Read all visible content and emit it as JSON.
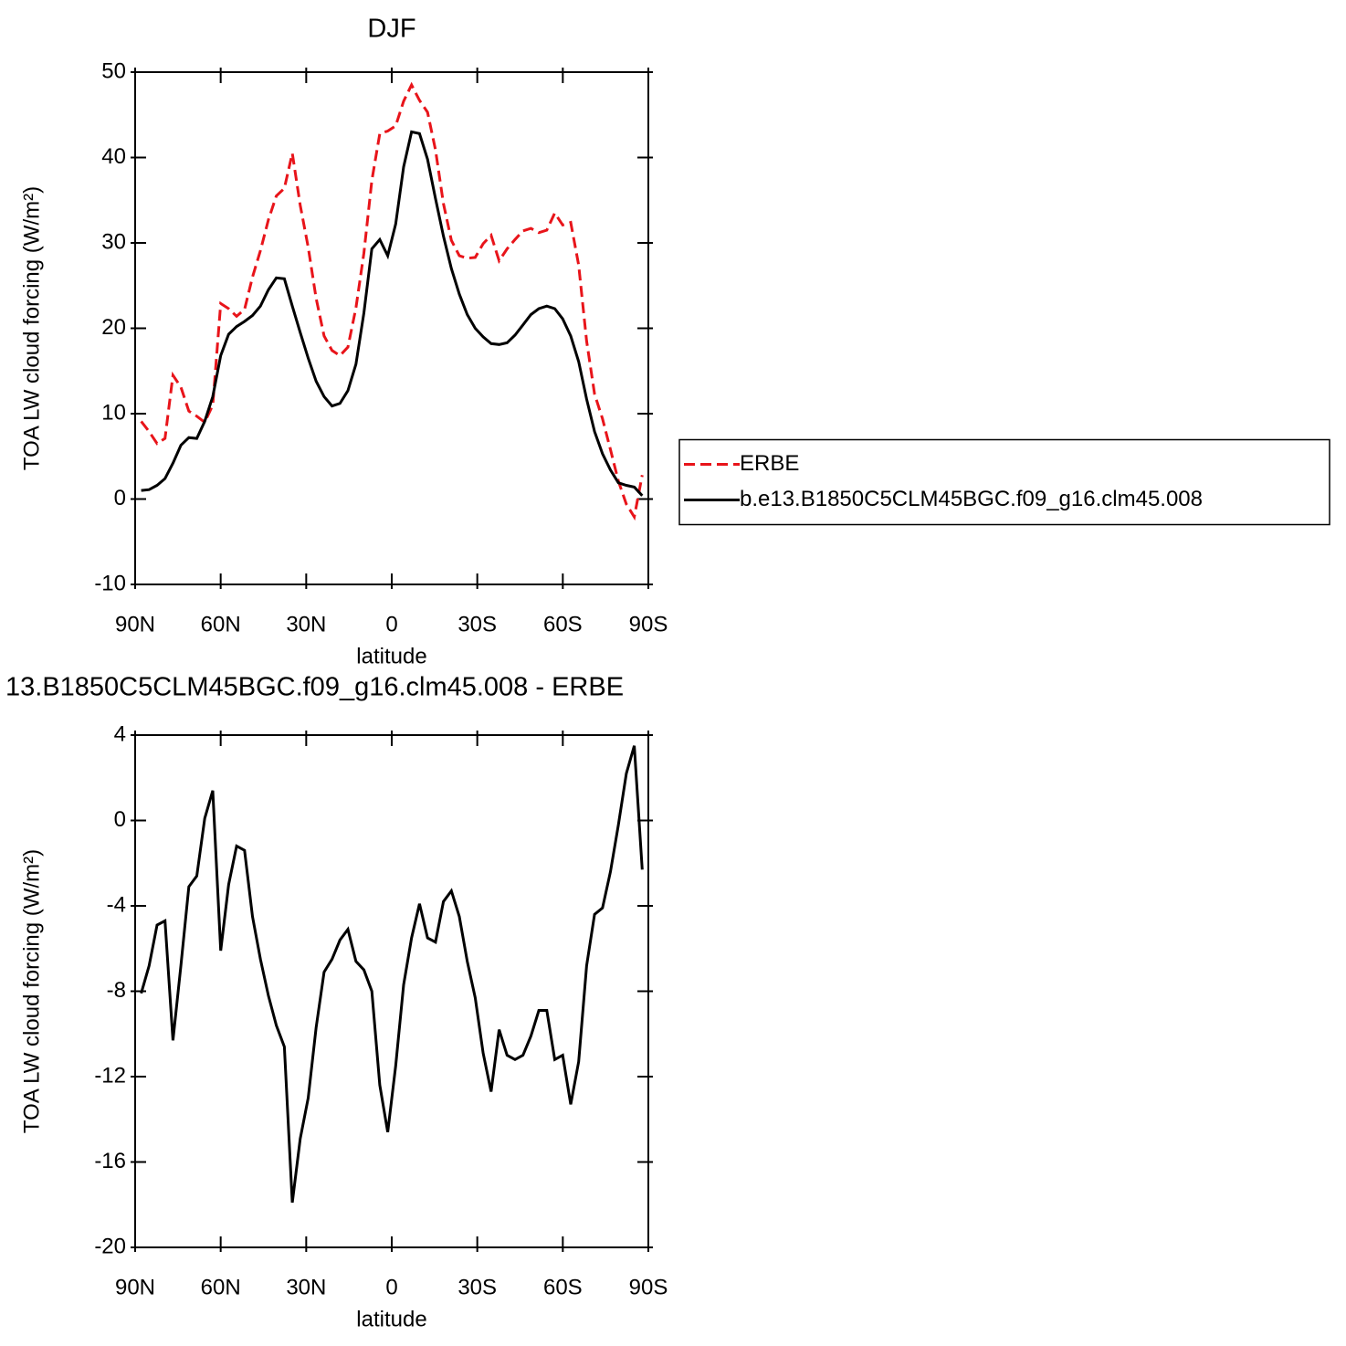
{
  "chart_data": [
    {
      "type": "line",
      "title": "DJF",
      "x_label": "latitude",
      "y_label": "TOA LW cloud forcing (W/m²)",
      "x": [
        87.9,
        85.11,
        82.32,
        79.53,
        76.74,
        73.95,
        71.16,
        68.37,
        65.58,
        62.79,
        60.0,
        57.21,
        54.42,
        51.63,
        48.84,
        46.05,
        43.26,
        40.47,
        37.68,
        34.89,
        32.1,
        29.31,
        26.52,
        23.73,
        20.94,
        18.15,
        15.36,
        12.57,
        9.78,
        6.99,
        4.2,
        1.41,
        -1.38,
        -4.17,
        -6.96,
        -9.75,
        -12.54,
        -15.33,
        -18.12,
        -20.91,
        -23.7,
        -26.49,
        -29.28,
        -32.07,
        -34.86,
        -37.65,
        -40.44,
        -43.23,
        -46.02,
        -48.81,
        -51.6,
        -54.39,
        -57.18,
        -59.97,
        -62.76,
        -65.55,
        -68.34,
        -71.13,
        -73.92,
        -76.71,
        -79.5,
        -82.29,
        -85.08,
        -87.87
      ],
      "series": [
        {
          "name": "ERBE",
          "color": "#e8141a",
          "dash": true,
          "values": [
            9.1,
            7.9,
            6.5,
            7.1,
            14.5,
            13.1,
            10.3,
            9.7,
            9.0,
            11.0,
            22.9,
            22.3,
            21.4,
            22.2,
            26.0,
            29.1,
            32.7,
            35.5,
            36.4,
            40.5,
            34.4,
            29.5,
            23.5,
            19.1,
            17.4,
            16.8,
            17.8,
            22.4,
            28.8,
            37.3,
            42.8,
            43.1,
            43.7,
            46.6,
            48.5,
            46.7,
            45.3,
            40.9,
            34.6,
            30.3,
            28.5,
            28.2,
            28.3,
            29.9,
            30.9,
            27.9,
            29.3,
            30.4,
            31.4,
            31.7,
            31.2,
            31.5,
            33.5,
            32.1,
            32.4,
            27.4,
            18.5,
            12.3,
            9.4,
            5.8,
            2.1,
            -0.6,
            -2.1,
            2.8
          ]
        },
        {
          "name": "b.e13.B1850C5CLM45BGC.f09_g16.clm45.008",
          "color": "#000000",
          "dash": false,
          "values": [
            1.0,
            1.1,
            1.6,
            2.4,
            4.2,
            6.3,
            7.2,
            7.1,
            9.1,
            12.0,
            16.8,
            19.3,
            20.2,
            20.8,
            21.5,
            22.6,
            24.5,
            25.9,
            25.8,
            22.6,
            19.5,
            16.5,
            13.8,
            12.0,
            10.9,
            11.2,
            12.7,
            15.8,
            21.8,
            29.3,
            30.4,
            28.5,
            32.2,
            38.9,
            43.0,
            42.8,
            39.8,
            35.2,
            30.8,
            27.0,
            24.0,
            21.6,
            20.0,
            19.0,
            18.2,
            18.1,
            18.3,
            19.2,
            20.4,
            21.6,
            22.3,
            22.6,
            22.3,
            21.1,
            19.1,
            16.1,
            11.7,
            7.9,
            5.3,
            3.4,
            1.9,
            1.6,
            1.4,
            0.4
          ]
        }
      ],
      "xlim": [
        90,
        -90
      ],
      "xticks": [
        {
          "value": 90,
          "label": "90N"
        },
        {
          "value": 60,
          "label": "60N"
        },
        {
          "value": 30,
          "label": "30N"
        },
        0,
        {
          "value": -30,
          "label": "30S"
        },
        {
          "value": -60,
          "label": "60S"
        },
        {
          "value": -90,
          "label": "90S"
        }
      ],
      "ylim": [
        -10,
        50
      ],
      "yticks": [
        -10,
        0,
        10,
        20,
        30,
        40,
        50
      ],
      "legend": "right"
    },
    {
      "type": "line",
      "title": "13.B1850C5CLM45BGC.f09_g16.clm45.008 - ERBE",
      "x_label": "latitude",
      "y_label": "TOA LW cloud forcing (W/m²)",
      "x": [
        87.9,
        85.11,
        82.32,
        79.53,
        76.74,
        73.95,
        71.16,
        68.37,
        65.58,
        62.79,
        60.0,
        57.21,
        54.42,
        51.63,
        48.84,
        46.05,
        43.26,
        40.47,
        37.68,
        34.89,
        32.1,
        29.31,
        26.52,
        23.73,
        20.94,
        18.15,
        15.36,
        12.57,
        9.78,
        6.99,
        4.2,
        1.41,
        -1.38,
        -4.17,
        -6.96,
        -9.75,
        -12.54,
        -15.33,
        -18.12,
        -20.91,
        -23.7,
        -26.49,
        -29.28,
        -32.07,
        -34.86,
        -37.65,
        -40.44,
        -43.23,
        -46.02,
        -48.81,
        -51.6,
        -54.39,
        -57.18,
        -59.97,
        -62.76,
        -65.55,
        -68.34,
        -71.13,
        -73.92,
        -76.71,
        -79.5,
        -82.29,
        -85.08,
        -87.87
      ],
      "series": [
        {
          "color": "#000000",
          "dash": false,
          "values": [
            -8.1,
            -6.8,
            -4.9,
            -4.7,
            -10.3,
            -6.8,
            -3.1,
            -2.6,
            0.1,
            1.4,
            -6.1,
            -3.0,
            -1.2,
            -1.4,
            -4.5,
            -6.5,
            -8.2,
            -9.6,
            -10.6,
            -17.9,
            -14.9,
            -13.0,
            -9.7,
            -7.1,
            -6.5,
            -5.6,
            -5.1,
            -6.6,
            -7.0,
            -8.0,
            -12.4,
            -14.6,
            -11.5,
            -7.7,
            -5.5,
            -3.9,
            -5.5,
            -5.7,
            -3.8,
            -3.3,
            -4.5,
            -6.6,
            -8.3,
            -10.9,
            -12.7,
            -9.8,
            -11.0,
            -11.2,
            -11.0,
            -10.1,
            -8.9,
            -8.9,
            -11.2,
            -11.0,
            -13.3,
            -11.3,
            -6.8,
            -4.4,
            -4.1,
            -2.4,
            -0.2,
            2.2,
            3.5,
            -2.3
          ]
        }
      ],
      "xlim": [
        90,
        -90
      ],
      "xticks": [
        {
          "value": 90,
          "label": "90N"
        },
        {
          "value": 60,
          "label": "60N"
        },
        {
          "value": 30,
          "label": "30N"
        },
        0,
        {
          "value": -30,
          "label": "30S"
        },
        {
          "value": -60,
          "label": "60S"
        },
        {
          "value": -90,
          "label": "90S"
        }
      ],
      "ylim": [
        -20,
        4
      ],
      "yticks": [
        -20,
        -16,
        -12,
        -8,
        -4,
        0,
        4
      ]
    }
  ]
}
